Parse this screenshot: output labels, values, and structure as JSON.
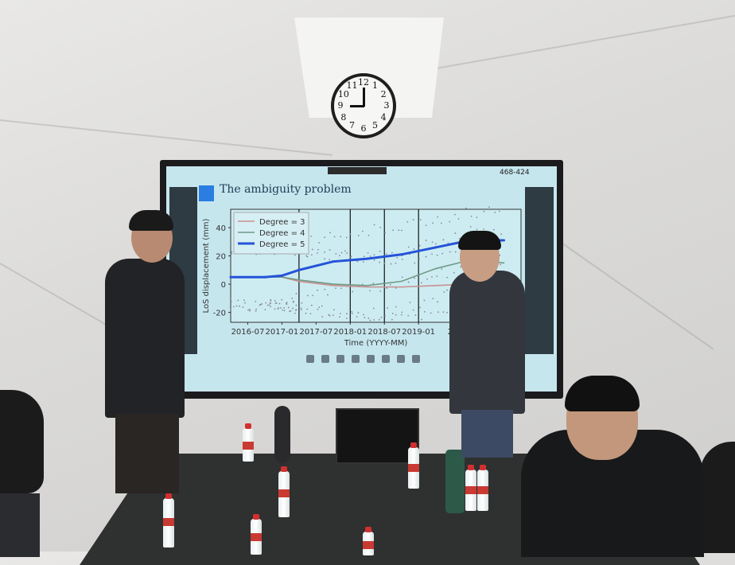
{
  "scene": {
    "wall_color": "#dcdbd9",
    "table_color": "#2f3030"
  },
  "clock": {
    "numerals": [
      "12",
      "1",
      "2",
      "3",
      "4",
      "5",
      "6",
      "7",
      "8",
      "9",
      "10",
      "11"
    ]
  },
  "screen": {
    "meeting_id": "468-424",
    "slide_title": "The ambiguity problem",
    "accent_color": "#2a7de1"
  },
  "chart_data": {
    "type": "line",
    "title": "",
    "xlabel": "Time (YYYY-MM)",
    "ylabel": "LoS displacement (mm)",
    "x_tick_labels": [
      "2016-07",
      "2017-01",
      "2017-07",
      "2018-01",
      "2018-07",
      "2019-01",
      "20"
    ],
    "y_ticks": [
      40,
      20,
      0,
      -20
    ],
    "ylim": [
      -27,
      53
    ],
    "xlim": [
      "2016-04",
      "2020-07"
    ],
    "legend_position": "top-left",
    "series": [
      {
        "name": "Degree = 3",
        "color": "#c89090",
        "x": [
          "2016-04",
          "2016-10",
          "2017-01",
          "2017-04",
          "2017-10",
          "2018-04",
          "2018-10",
          "2019-04",
          "2019-10",
          "2020-04"
        ],
        "y": [
          5,
          5,
          5,
          2,
          -1,
          -2,
          -2,
          -1,
          0,
          1
        ]
      },
      {
        "name": "Degree = 4",
        "color": "#6f9a86",
        "x": [
          "2016-04",
          "2016-10",
          "2017-01",
          "2017-04",
          "2017-10",
          "2018-04",
          "2018-10",
          "2019-04",
          "2019-10",
          "2020-04"
        ],
        "y": [
          5,
          5,
          5,
          3,
          0,
          -1,
          2,
          11,
          17,
          15
        ]
      },
      {
        "name": "Degree = 5",
        "color": "#2553d8",
        "x": [
          "2016-04",
          "2016-10",
          "2017-01",
          "2017-04",
          "2017-10",
          "2018-04",
          "2018-10",
          "2019-04",
          "2019-10",
          "2020-04"
        ],
        "y": [
          5,
          5,
          6,
          10,
          16,
          18,
          21,
          26,
          31,
          31
        ]
      }
    ]
  }
}
